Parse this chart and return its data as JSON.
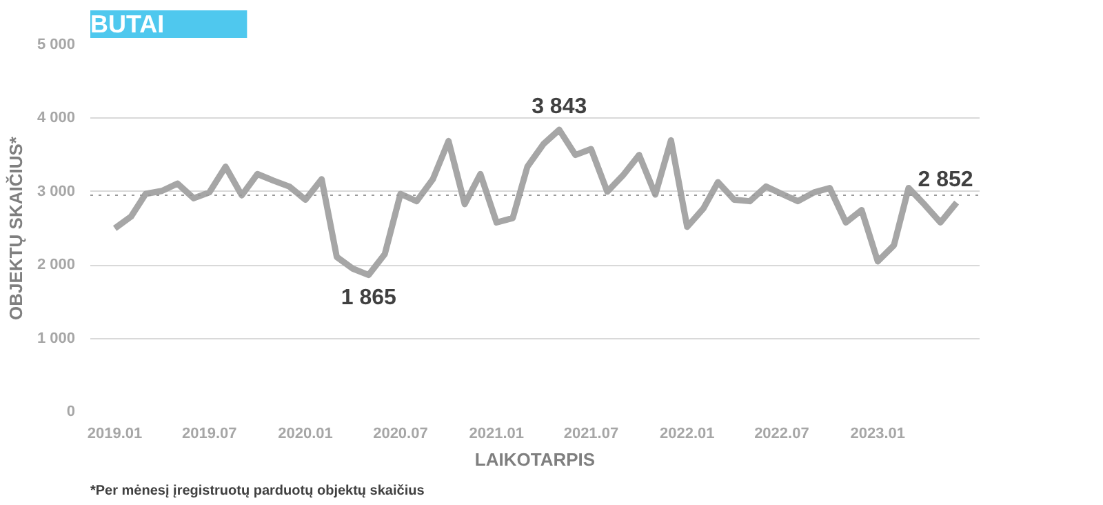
{
  "chart_data": {
    "type": "line",
    "title": "BUTAI",
    "xlabel": "LAIKOTARPIS",
    "ylabel": "OBJEKTŲ SKAIČIUS*",
    "annotations": [
      "*Per mėnesį įregistruotų parduotų objektų skaičius"
    ],
    "x": [
      "2019-01",
      "2019-02",
      "2019-03",
      "2019-04",
      "2019-05",
      "2019-06",
      "2019-07",
      "2019-08",
      "2019-09",
      "2019-10",
      "2019-11",
      "2019-12",
      "2020-01",
      "2020-02",
      "2020-03",
      "2020-04",
      "2020-05",
      "2020-06",
      "2020-07",
      "2020-08",
      "2020-09",
      "2020-10",
      "2020-11",
      "2020-12",
      "2021-01",
      "2021-02",
      "2021-03",
      "2021-04",
      "2021-05",
      "2021-06",
      "2021-07",
      "2021-08",
      "2021-09",
      "2021-10",
      "2021-11",
      "2021-12",
      "2022-01",
      "2022-02",
      "2022-03",
      "2022-04",
      "2022-05",
      "2022-06",
      "2022-07",
      "2022-08",
      "2022-09",
      "2022-10",
      "2022-11",
      "2022-12",
      "2023-01",
      "2023-02",
      "2023-03",
      "2023-04",
      "2023-05",
      "2023-06"
    ],
    "series": [
      {
        "color": "#a6a6a6",
        "values": [
          2500,
          2660,
          2970,
          3010,
          3110,
          2910,
          2990,
          3340,
          2950,
          3240,
          3150,
          3070,
          2890,
          3170,
          2110,
          1950,
          1865,
          2150,
          2970,
          2870,
          3170,
          3690,
          2830,
          3240,
          2580,
          2640,
          3340,
          3650,
          3843,
          3500,
          3580,
          3000,
          3230,
          3500,
          2960,
          3700,
          2520,
          2770,
          3130,
          2890,
          2870,
          3070,
          2970,
          2870,
          2990,
          3050,
          2580,
          2750,
          2050,
          2270,
          3050,
          2820,
          2580,
          2852
        ],
        "value_labels": [
          null,
          null,
          null,
          null,
          null,
          null,
          null,
          null,
          null,
          null,
          null,
          null,
          null,
          null,
          null,
          null,
          "1 865",
          null,
          null,
          null,
          null,
          null,
          null,
          null,
          null,
          null,
          null,
          null,
          "3 843",
          null,
          null,
          null,
          null,
          null,
          null,
          null,
          null,
          null,
          null,
          null,
          null,
          null,
          null,
          null,
          null,
          null,
          null,
          null,
          null,
          null,
          null,
          null,
          null,
          "2 852"
        ]
      }
    ],
    "xlim": [
      "2018-11-15",
      "2023-07-15"
    ],
    "xticks": [
      {
        "value": "2019-01",
        "label": "2019.01"
      },
      {
        "value": "2019-07",
        "label": "2019.07"
      },
      {
        "value": "2020-01",
        "label": "2020.01"
      },
      {
        "value": "2020-07",
        "label": "2020.07"
      },
      {
        "value": "2021-01",
        "label": "2021.01"
      },
      {
        "value": "2021-07",
        "label": "2021.07"
      },
      {
        "value": "2022-01",
        "label": "2022.01"
      },
      {
        "value": "2022-07",
        "label": "2022.07"
      },
      {
        "value": "2023-01",
        "label": "2023.01"
      }
    ],
    "ylim": [
      0,
      5000
    ],
    "yticks": [
      {
        "value": 0,
        "label": "0"
      },
      {
        "value": 1000,
        "label": "1 000"
      },
      {
        "value": 2000,
        "label": "2 000"
      },
      {
        "value": 3000,
        "label": "3 000"
      },
      {
        "value": 4000,
        "label": "4 000"
      },
      {
        "value": 5000,
        "label": "5 000"
      }
    ],
    "ref_lines": [
      {
        "axis": "y",
        "value": 2950,
        "color": "#999999",
        "line_style": "dotted"
      }
    ],
    "grid": "y",
    "marker": "none",
    "line_style": "solid"
  }
}
